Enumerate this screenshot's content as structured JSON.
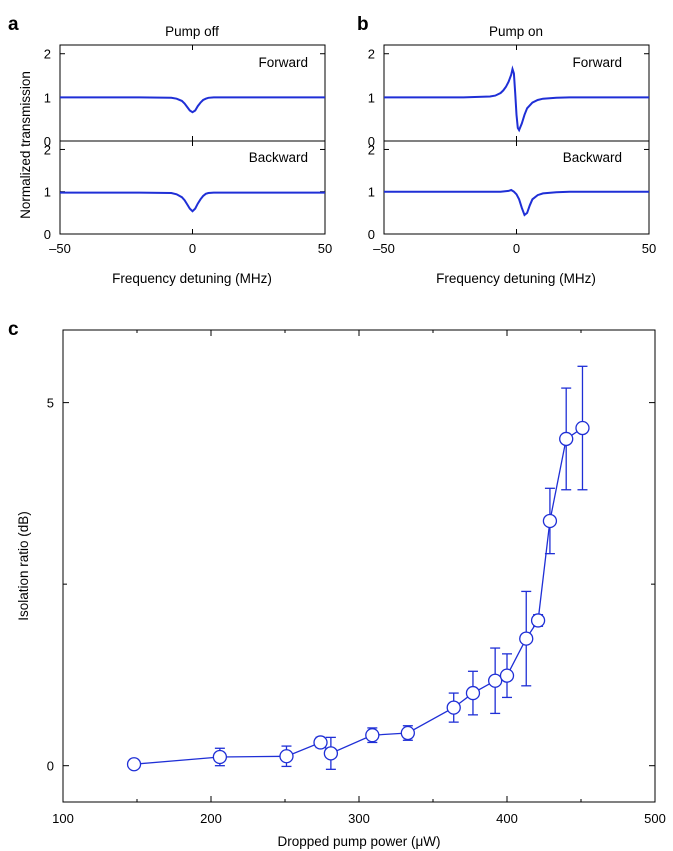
{
  "colors": {
    "trace": "#1f2fd6",
    "axis": "#000000",
    "background": "#ffffff"
  },
  "figure": {
    "panel_labels": [
      "a",
      "b",
      "c"
    ],
    "shared_ylabel_ab": "Normalized transmission"
  },
  "chart_data": [
    {
      "id": "a",
      "type": "line",
      "title": "Pump off",
      "xlabel": "Frequency detuning (MHz)",
      "ylabel": "Normalized transmission",
      "xlim": [
        -50,
        50
      ],
      "x_ticks": [
        "–50",
        "0",
        "50"
      ],
      "subplots": [
        {
          "label": "Forward",
          "ylim": [
            0,
            2.2
          ],
          "y_ticks": [
            "0",
            "1",
            "2"
          ],
          "x": [
            -50,
            -20,
            -8,
            -6,
            -4,
            -3,
            -2,
            -1,
            0,
            1,
            2,
            3,
            4,
            5,
            6,
            8,
            10,
            20,
            50
          ],
          "y": [
            1.0,
            1.0,
            0.99,
            0.97,
            0.92,
            0.86,
            0.78,
            0.7,
            0.66,
            0.7,
            0.8,
            0.88,
            0.94,
            0.97,
            0.99,
            1.0,
            1.0,
            1.0,
            1.0
          ]
        },
        {
          "label": "Backward",
          "ylim": [
            0,
            2.2
          ],
          "y_ticks": [
            "0",
            "1",
            "2"
          ],
          "x": [
            -50,
            -20,
            -8,
            -6,
            -4,
            -3,
            -2,
            -1,
            0,
            1,
            2,
            3,
            4,
            5,
            6,
            8,
            10,
            20,
            50
          ],
          "y": [
            0.98,
            0.98,
            0.97,
            0.94,
            0.87,
            0.8,
            0.7,
            0.6,
            0.54,
            0.6,
            0.72,
            0.82,
            0.9,
            0.95,
            0.97,
            0.98,
            0.98,
            0.98,
            0.98
          ]
        }
      ]
    },
    {
      "id": "b",
      "type": "line",
      "title": "Pump on",
      "xlabel": "Frequency detuning (MHz)",
      "xlim": [
        -50,
        50
      ],
      "x_ticks": [
        "–50",
        "0",
        "50"
      ],
      "subplots": [
        {
          "label": "Forward",
          "ylim": [
            0,
            2.2
          ],
          "y_ticks": [
            "0",
            "1",
            "2"
          ],
          "x": [
            -50,
            -20,
            -10,
            -8,
            -6,
            -5,
            -4,
            -3,
            -2,
            -1.5,
            -1,
            -0.5,
            0,
            0.5,
            1,
            2,
            3,
            4,
            6,
            8,
            10,
            15,
            20,
            50
          ],
          "y": [
            1.0,
            1.0,
            1.02,
            1.04,
            1.1,
            1.16,
            1.24,
            1.36,
            1.52,
            1.65,
            1.55,
            1.1,
            0.6,
            0.3,
            0.25,
            0.4,
            0.6,
            0.75,
            0.88,
            0.94,
            0.97,
            0.99,
            1.0,
            1.0
          ]
        },
        {
          "label": "Backward",
          "ylim": [
            0,
            2.2
          ],
          "y_ticks": [
            "0",
            "1",
            "2"
          ],
          "x": [
            -50,
            -20,
            -6,
            -3,
            -2,
            -1,
            0,
            1,
            2,
            3,
            4,
            5,
            6,
            8,
            10,
            15,
            20,
            50
          ],
          "y": [
            1.0,
            1.0,
            1.0,
            1.02,
            1.04,
            1.0,
            0.94,
            0.82,
            0.62,
            0.45,
            0.5,
            0.68,
            0.82,
            0.92,
            0.96,
            0.99,
            1.0,
            1.0
          ]
        }
      ]
    },
    {
      "id": "c",
      "type": "scatter",
      "xlabel": "Dropped pump power (μW)",
      "ylabel": "Isolation ratio (dB)",
      "xlim": [
        100,
        500
      ],
      "ylim": [
        -0.5,
        6.0
      ],
      "x_ticks": [
        100,
        200,
        300,
        400,
        500
      ],
      "y_ticks": [
        0,
        5
      ],
      "marker": "open-circle",
      "connected": true,
      "x": [
        148,
        206,
        251,
        274,
        281,
        309,
        333,
        364,
        377,
        392,
        400,
        413,
        421,
        429,
        440,
        451
      ],
      "y": [
        0.02,
        0.12,
        0.13,
        0.32,
        0.17,
        0.42,
        0.45,
        0.8,
        1.0,
        1.17,
        1.24,
        1.75,
        2.0,
        3.37,
        4.5,
        4.65
      ],
      "yerr": [
        0.05,
        0.12,
        0.14,
        0.07,
        0.22,
        0.1,
        0.1,
        0.2,
        0.3,
        0.45,
        0.3,
        0.65,
        0.08,
        0.45,
        0.7,
        0.85
      ]
    }
  ]
}
